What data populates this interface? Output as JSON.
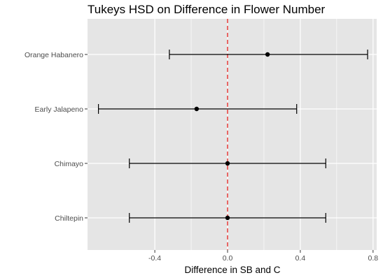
{
  "chart_data": {
    "type": "scatter",
    "subtype": "error-bar",
    "title": "Tukeys HSD on Difference in Flower Number",
    "xlabel": "Difference in SB and C",
    "ylabel": "",
    "xlim": [
      -0.77,
      0.82
    ],
    "x_ticks": [
      -0.4,
      0.0,
      0.4,
      0.8
    ],
    "x_tick_labels": [
      "-0.4",
      "0.0",
      "0.4",
      "0.8"
    ],
    "grid": true,
    "reference_line": {
      "x": 0.0,
      "style": "dashed",
      "color": "#e8211f"
    },
    "categories": [
      "Orange Habanero",
      "Early Jalapeno",
      "Chimayo",
      "Chiltepin"
    ],
    "points": [
      {
        "category": "Orange Habanero",
        "estimate": 0.22,
        "lower": -0.32,
        "upper": 0.77
      },
      {
        "category": "Early Jalapeno",
        "estimate": -0.17,
        "lower": -0.71,
        "upper": 0.38
      },
      {
        "category": "Chimayo",
        "estimate": 0.0,
        "lower": -0.54,
        "upper": 0.54
      },
      {
        "category": "Chiltepin",
        "estimate": 0.0,
        "lower": -0.54,
        "upper": 0.54
      }
    ]
  },
  "colors": {
    "panel_background": "#e5e5e5",
    "grid": "#ffffff",
    "points": "#000000",
    "error_bars": "#000000",
    "reference_line": "#e8211f"
  }
}
